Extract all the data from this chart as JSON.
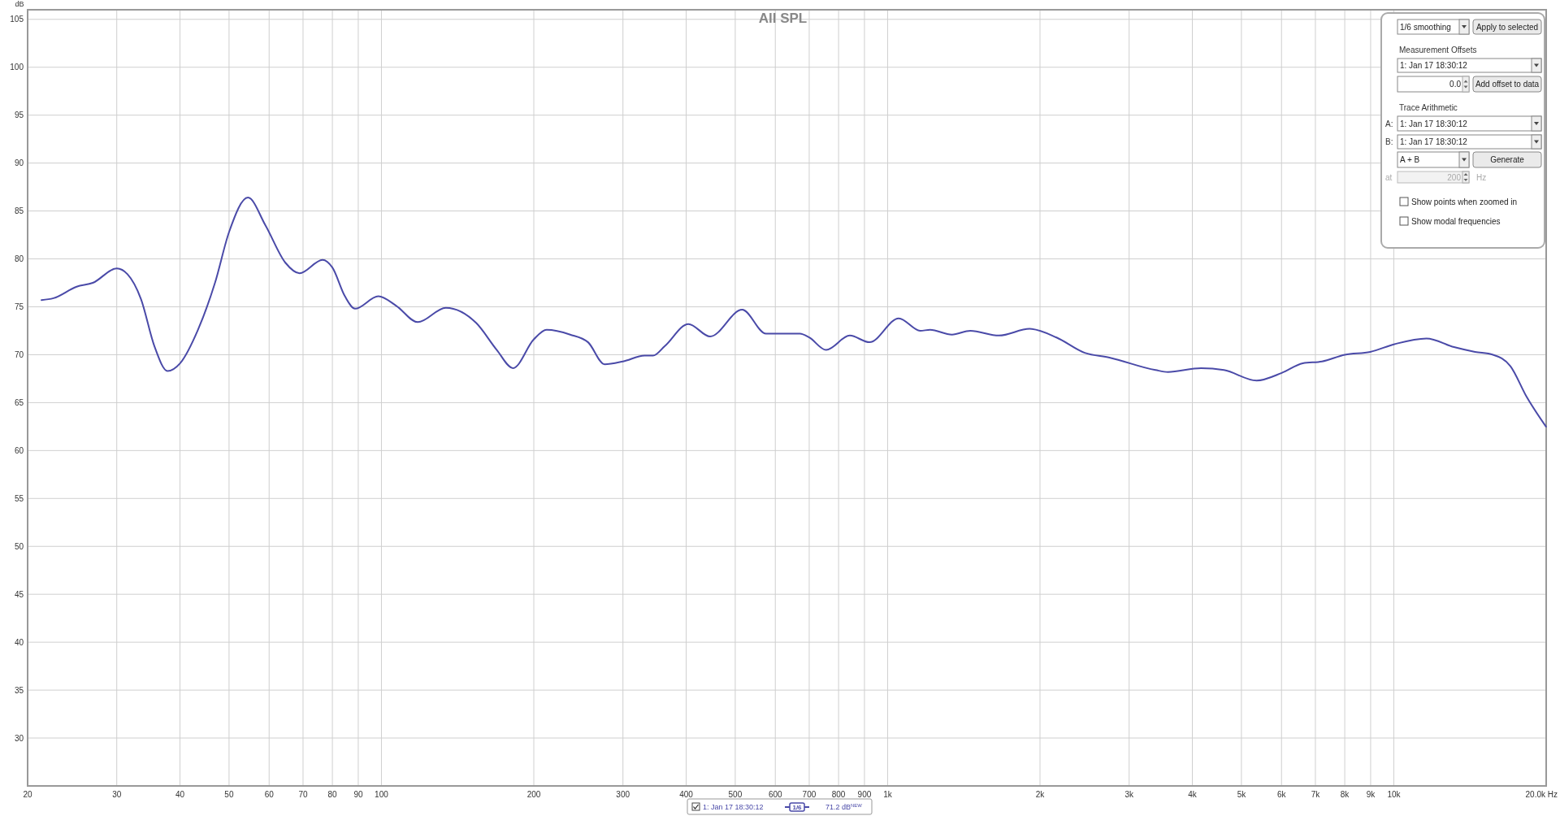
{
  "chart_data": {
    "type": "line",
    "title": "All SPL",
    "ylabel": "dB",
    "log": "x",
    "grid": true,
    "legend": "bottom",
    "marker": "none",
    "line_style": "solid",
    "xlim": [
      20,
      20000
    ],
    "ylim": [
      25,
      106
    ],
    "xticks": [
      20,
      30,
      40,
      50,
      60,
      70,
      80,
      90,
      100,
      200,
      300,
      400,
      500,
      600,
      700,
      800,
      900,
      {
        "value": 1000,
        "label": "1k"
      },
      {
        "value": 2000,
        "label": "2k"
      },
      {
        "value": 3000,
        "label": "3k"
      },
      {
        "value": 4000,
        "label": "4k"
      },
      {
        "value": 5000,
        "label": "5k"
      },
      {
        "value": 6000,
        "label": "6k"
      },
      {
        "value": 7000,
        "label": "7k"
      },
      {
        "value": 8000,
        "label": "8k"
      },
      {
        "value": 9000,
        "label": "9k"
      },
      {
        "value": 10000,
        "label": "10k"
      },
      {
        "value": 20000,
        "label": "20.0k Hz"
      }
    ],
    "yticks": [
      30,
      35,
      40,
      45,
      50,
      55,
      60,
      65,
      70,
      75,
      80,
      85,
      90,
      95,
      100,
      105
    ],
    "series": [
      {
        "name": "1: Jan 17 18:30:12",
        "color": "#4a4aa8",
        "x": [
          21.3,
          22.5,
          25,
          26.9,
          30,
          31.5,
          33.5,
          35.6,
          37.8,
          40,
          43.4,
          46.9,
          50,
          54.5,
          59,
          64.6,
          68.9,
          76.5,
          80,
          84.7,
          88.7,
          98.6,
          107,
          118,
          134,
          154,
          169,
          182,
          200,
          212,
          236,
          256,
          276,
          300,
          331,
          344,
          363,
          404,
          446,
          516,
          575,
          671,
          700,
          756,
          842,
          921,
          1052,
          1160,
          1213,
          1340,
          1457,
          1659,
          1908,
          2156,
          2452,
          2743,
          3383,
          3578,
          4161,
          4618,
          5358,
          6006,
          6609,
          7214,
          8005,
          8983,
          10030,
          11600,
          13150,
          14470,
          15700,
          17000,
          18300,
          19980
        ],
        "values": [
          75.7,
          75.9,
          77.1,
          77.5,
          79.0,
          78.4,
          75.8,
          70.9,
          68.3,
          69.1,
          72.6,
          77.5,
          82.8,
          86.4,
          83.5,
          79.6,
          78.5,
          79.9,
          79.1,
          76.1,
          74.8,
          76.1,
          75.1,
          73.4,
          74.9,
          73.3,
          70.5,
          68.6,
          71.6,
          72.6,
          72.1,
          71.3,
          69.0,
          69.3,
          69.9,
          69.9,
          70.9,
          73.2,
          71.9,
          74.7,
          72.2,
          72.2,
          71.8,
          70.5,
          72.0,
          71.3,
          73.8,
          72.5,
          72.6,
          72.1,
          72.5,
          72.0,
          72.7,
          71.8,
          70.2,
          69.7,
          68.4,
          68.2,
          68.6,
          68.4,
          67.3,
          68.1,
          69.1,
          69.3,
          70.0,
          70.3,
          71.1,
          71.7,
          70.8,
          70.3,
          70.0,
          68.8,
          65.6,
          62.5
        ]
      }
    ],
    "annotations": [
      "1/6 smoothing",
      "Apply to selected",
      "Measurement Offsets",
      "1: Jan 17 18:30:12",
      "0.0",
      "Add offset to data",
      "Trace Arithmetic",
      "A:",
      "1: Jan 17 18:30:12",
      "B:",
      "1: Jan 17 18:30:12",
      "A + B",
      "Generate",
      "at",
      "200",
      "Hz",
      "Show points when zoomed in",
      "Show modal frequencies",
      "1/6",
      "71.2 dB$^{NEW}$"
    ]
  }
}
